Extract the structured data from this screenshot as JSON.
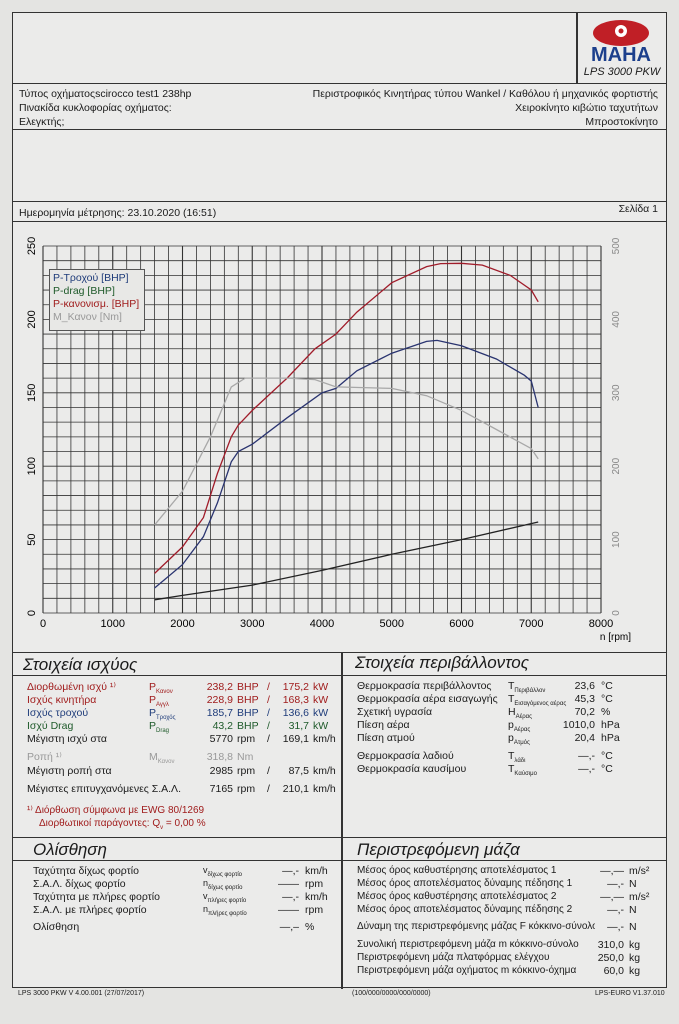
{
  "header": {
    "logo_text": "MAHA",
    "model": "LPS 3000 PKW",
    "vehicle_type": "Τύπος οχήματοςscirocco test1 238hp",
    "plate": "Πινακίδα κυκλοφορίας οχήματος:",
    "inspector": "Ελεγκτής;",
    "engine": "Περιστροφικός Κινητήρας τύπου Wankel / Καθόλου ή μηχανικός φορτιστής",
    "gearbox": "Χειροκίνητο κιβώτιο ταχυτήτων",
    "drive": "Μπροστοκίνητο",
    "date": "Ημερομηνία μέτρησης: 23.10.2020 (16:51)",
    "page": "Σελίδα 1"
  },
  "chart_data": {
    "type": "line",
    "xlabel": "n [rpm]",
    "xlim": [
      0,
      8000
    ],
    "ylim_left": [
      0,
      250
    ],
    "ylim_right": [
      0,
      500
    ],
    "x_ticks": [
      "0",
      "1000",
      "2000",
      "3000",
      "4000",
      "5000",
      "6000",
      "7000",
      "8000"
    ],
    "y_ticks_left": [
      "0",
      "50",
      "100",
      "150",
      "200",
      "250"
    ],
    "y_ticks_right": [
      "0",
      "100",
      "200",
      "300",
      "400",
      "500"
    ],
    "grid": true,
    "legend": "top-left",
    "series": [
      {
        "name": "P-Τροχού [BHP]",
        "axis": "left",
        "color": "#2a3470",
        "x": [
          1600,
          2000,
          2300,
          2500,
          2700,
          2800,
          3000,
          3500,
          4000,
          4200,
          4500,
          5000,
          5500,
          5650,
          6000,
          6500,
          6900,
          7000,
          7100
        ],
        "y": [
          17,
          33,
          52,
          75,
          103,
          110,
          115,
          133,
          150,
          153,
          165,
          177,
          185,
          185.7,
          182,
          173,
          162,
          158,
          140
        ]
      },
      {
        "name": "P-drag [BHP]",
        "axis": "left",
        "color": "#222222",
        "x": [
          1600,
          2000,
          3000,
          4000,
          5000,
          6000,
          7100
        ],
        "y": [
          9,
          12,
          19,
          29,
          40,
          50,
          62
        ]
      },
      {
        "name": "P-κανονισμ. [BHP]",
        "axis": "left",
        "color": "#a01c2a",
        "x": [
          1600,
          2000,
          2300,
          2500,
          2700,
          2800,
          3000,
          3500,
          3900,
          4200,
          4500,
          5000,
          5500,
          5700,
          6000,
          6300,
          6700,
          7000,
          7100
        ],
        "y": [
          27,
          45,
          65,
          95,
          120,
          128,
          138,
          160,
          180,
          190,
          205,
          225,
          236,
          238,
          238.2,
          237,
          230,
          220,
          212
        ]
      },
      {
        "name": "M_Κανον [Nm]",
        "axis": "right",
        "color": "#a8a8a8",
        "x": [
          1600,
          2000,
          2400,
          2700,
          2900,
          3500,
          3900,
          4200,
          5000,
          5500,
          6000,
          6500,
          7000,
          7100
        ],
        "y": [
          120,
          166,
          240,
          308,
          320,
          320,
          318,
          308,
          306,
          296,
          276,
          250,
          224,
          210
        ]
      }
    ]
  },
  "power": {
    "title": "Στοιχεία ισχύος",
    "rows": [
      {
        "label": "Διορθωμένη ισχύ ¹⁾",
        "sym": "P",
        "sub": "Κανον",
        "v1": "238,2",
        "u1": "BHP",
        "sep": "/",
        "v2": "175,2",
        "u2": "kW"
      },
      {
        "label": "Ισχύς κινητήρα",
        "sym": "P",
        "sub": "Αγγλ",
        "v1": "228,9",
        "u1": "BHP",
        "sep": "/",
        "v2": "168,3",
        "u2": "kW"
      },
      {
        "label": "Ισχύς τροχού",
        "sym": "P",
        "sub": "Τροχός",
        "v1": "185,7",
        "u1": "BHP",
        "sep": "/",
        "v2": "136,6",
        "u2": "kW"
      },
      {
        "label": "Ισχύ Drag",
        "sym": "P",
        "sub": "Drag",
        "v1": "43,2",
        "u1": "BHP",
        "sep": "/",
        "v2": "31,7",
        "u2": "kW"
      },
      {
        "label": "Μέγιστη ισχύ στα",
        "sym": "",
        "sub": "",
        "v1": "5770",
        "u1": "rpm",
        "sep": "/",
        "v2": "169,1",
        "u2": "km/h"
      },
      {
        "label": "Ροπή ¹⁾",
        "sym": "M",
        "sub": "Κανον",
        "v1": "318,8",
        "u1": "Nm",
        "sep": "",
        "v2": "",
        "u2": ""
      },
      {
        "label": "Μέγιστη ροπή στα",
        "sym": "",
        "sub": "",
        "v1": "2985",
        "u1": "rpm",
        "sep": "/",
        "v2": "87,5",
        "u2": "km/h"
      },
      {
        "label": "Μέγιστες επιτυγχανόμενες Σ.Α.Λ.",
        "sym": "",
        "sub": "",
        "v1": "7165",
        "u1": "rpm",
        "sep": "/",
        "v2": "210,1",
        "u2": "km/h"
      }
    ],
    "note1": "¹⁾ Διόρθωση σύμφωνα με EWG 80/1269",
    "note2": "Διορθωτικοί παράγοντες: Q",
    "note2_sub": "v",
    "note2_val": "=   0,00 %"
  },
  "environment": {
    "title": "Στοιχεία περιβάλλοντος",
    "rows": [
      {
        "label": "Θερμοκρασία περιβάλλοντος",
        "sym": "T",
        "sub": "Περιβάλλον",
        "v": "23,6",
        "u": "°C"
      },
      {
        "label": "Θερμοκρασία αέρα εισαγωγής",
        "sym": "T",
        "sub": "Εισαγόμενος αέρας",
        "v": "45,3",
        "u": "°C"
      },
      {
        "label": "Σχετική υγρασία",
        "sym": "H",
        "sub": "Αέρας",
        "v": "70,2",
        "u": "%"
      },
      {
        "label": "Πίεση αέρα",
        "sym": "p",
        "sub": "Αέρας",
        "v": "1010,0",
        "u": "hPa"
      },
      {
        "label": "Πίεση ατμού",
        "sym": "p",
        "sub": "Ατμός",
        "v": "20,4",
        "u": "hPa"
      },
      {
        "label": "Θερμοκρασία λαδιού",
        "sym": "T",
        "sub": "λάδι",
        "v": "—,-",
        "u": "°C"
      },
      {
        "label": "Θερμοκρασία καυσίμου",
        "sym": "T",
        "sub": "Καύσιμο",
        "v": "—,-",
        "u": "°C"
      }
    ]
  },
  "slip": {
    "title": "Ολίσθηση",
    "rows": [
      {
        "label": "Ταχύτητα δίχως φορτίο",
        "sym": "v",
        "sub": "δίχως φορτίο",
        "v": "—,-",
        "u": "km/h"
      },
      {
        "label": "Σ.Α.Λ. δίχως φορτίο",
        "sym": "n",
        "sub": "δίχως φορτίο",
        "v": "——",
        "u": "rpm"
      },
      {
        "label": "Ταχύτητα με πλήρες φορτίο",
        "sym": "v",
        "sub": "πλήρες φορτίο",
        "v": "—,-",
        "u": "km/h"
      },
      {
        "label": "Σ.Α.Λ. με πλήρες φορτίο",
        "sym": "n",
        "sub": "πλήρες φορτίο",
        "v": "——",
        "u": "rpm"
      },
      {
        "label": "Ολίσθηση",
        "sym": "",
        "sub": "",
        "v": "—,–",
        "u": "%"
      }
    ]
  },
  "mass": {
    "title": "Περιστρεφόμενη μάζα",
    "rows": [
      {
        "label": "Μέσος όρος καθυστέρησης αποτελέσματος 1",
        "v": "—,—",
        "u": "m/s²"
      },
      {
        "label": "Μέσος όρος αποτελέσματος δύναμης πέδησης 1",
        "v": "—,-",
        "u": "N"
      },
      {
        "label": "Μέσος όρος καθυστέρησης αποτελέσματος 2",
        "v": "—,—",
        "u": "m/s²"
      },
      {
        "label": "Μέσος όρος αποτελέσματος δύναμης πέδησης 2",
        "v": "—,-",
        "u": "N"
      },
      {
        "label": "Δύναμη της περιστρεφόμενης μάζας F κόκκινο-σύνολο",
        "v": "—,-",
        "u": "N"
      },
      {
        "label": "Συνολική περιστρεφόμενη μάζα  m κόκκινο-σύνολο",
        "v": "310,0",
        "u": "kg"
      },
      {
        "label": "Περιστρεφόμενη μάζα πλατφόρμας ελέγχου",
        "v": "250,0",
        "u": "kg"
      },
      {
        "label": "Περιστρεφόμενη μάζα οχήματος  m κόκκινο-όχημα",
        "v": "60,0",
        "u": "kg"
      }
    ]
  },
  "footer": {
    "left": "LPS 3000 PKW V 4.00.001 (27/07/2017)",
    "center": "(100/000/0000/000/0000)",
    "right": "LPS-EURO V1.37.010"
  }
}
